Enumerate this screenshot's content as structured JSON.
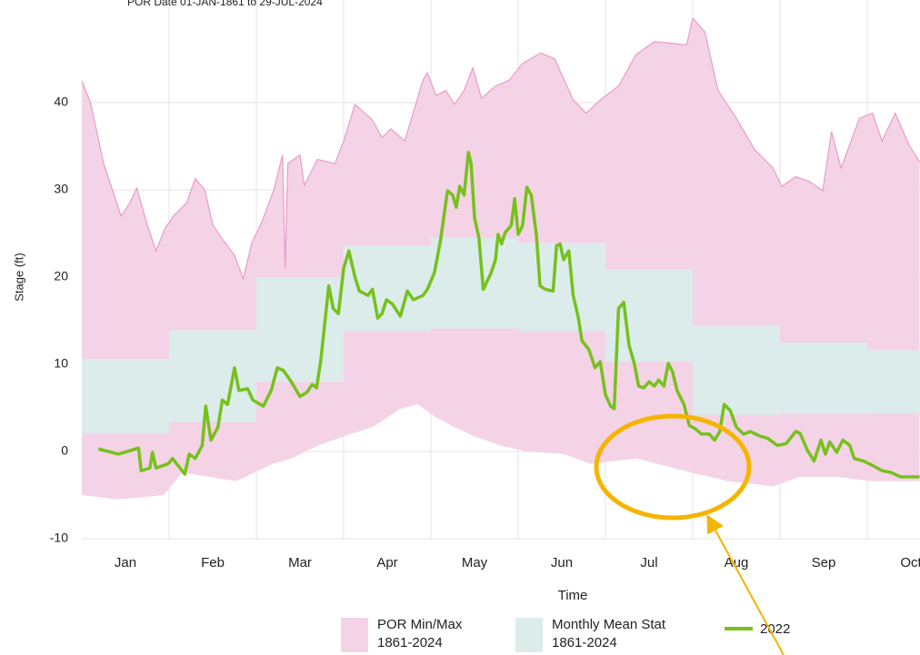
{
  "chart_data": {
    "type": "band-line",
    "subtitle": "POR Date 01-JAN-1861 to 29-JUL-2024",
    "y_label": "Stage (ft)",
    "x_label": "Time",
    "categories": [
      "Jan",
      "Feb",
      "Mar",
      "Apr",
      "May",
      "Jun",
      "Jul",
      "Aug",
      "Sep",
      "Oct"
    ],
    "xlim": [
      0,
      9.6
    ],
    "ylim": [
      -10,
      50
    ],
    "yticks": [
      -10,
      0,
      10,
      20,
      30,
      40
    ],
    "grid": true,
    "por": {
      "name": "POR Min/Max",
      "period": "1861-2024",
      "color": "#f5d3e6",
      "line_color": "#e99cc6",
      "max": {
        "x": [
          0.0,
          0.1,
          0.25,
          0.45,
          0.55,
          0.63,
          0.75,
          0.85,
          0.95,
          1.05,
          1.2,
          1.3,
          1.41,
          1.5,
          1.6,
          1.75,
          1.85,
          1.95,
          2.05,
          2.2,
          2.3,
          2.33,
          2.36,
          2.5,
          2.55,
          2.7,
          2.9,
          3.0,
          3.13,
          3.33,
          3.44,
          3.54,
          3.7,
          3.91,
          3.96,
          4.06,
          4.17,
          4.27,
          4.38,
          4.48,
          4.58,
          4.74,
          4.9,
          5.05,
          5.26,
          5.42,
          5.63,
          5.78,
          5.94,
          6.15,
          6.35,
          6.56,
          6.77,
          6.93,
          7.0,
          7.14,
          7.29,
          7.5,
          7.71,
          7.92,
          8.02,
          8.18,
          8.33,
          8.49,
          8.59,
          8.7,
          8.91,
          9.06,
          9.17,
          9.32,
          9.48,
          9.6
        ],
        "values": [
          42.5,
          40.0,
          33.0,
          27.0,
          28.5,
          30.2,
          26.0,
          23.0,
          25.5,
          27.0,
          28.5,
          31.3,
          30.0,
          26.0,
          24.5,
          22.5,
          19.8,
          24.0,
          26.0,
          30.0,
          34.0,
          21.0,
          33.0,
          34.0,
          30.5,
          33.5,
          33.0,
          35.6,
          39.8,
          38.0,
          36.0,
          37.0,
          35.6,
          42.6,
          43.4,
          40.8,
          41.4,
          39.8,
          41.4,
          44.0,
          40.5,
          41.9,
          42.6,
          44.5,
          45.7,
          45.0,
          40.3,
          38.8,
          40.3,
          41.9,
          45.5,
          47.0,
          46.8,
          46.6,
          49.7,
          48.1,
          41.4,
          38.2,
          34.6,
          32.5,
          30.4,
          31.5,
          31.0,
          29.9,
          36.7,
          32.5,
          38.2,
          38.8,
          35.6,
          38.8,
          35.1,
          33.2
        ]
      },
      "min": {
        "x": [
          0.0,
          0.42,
          0.94,
          1.15,
          1.46,
          1.77,
          1.98,
          2.19,
          2.4,
          2.71,
          3.02,
          3.33,
          3.65,
          3.85,
          4.06,
          4.27,
          4.48,
          4.79,
          5.1,
          5.52,
          5.83,
          6.35,
          6.67,
          6.98,
          7.4,
          7.92,
          8.23,
          8.65,
          9.06,
          9.6
        ],
        "values": [
          -5.0,
          -5.5,
          -5.0,
          -2.4,
          -2.9,
          -3.4,
          -2.4,
          -1.4,
          -0.8,
          0.7,
          1.8,
          2.8,
          4.9,
          5.4,
          3.9,
          2.8,
          1.8,
          0.7,
          0.0,
          -0.3,
          -1.4,
          -0.8,
          -1.6,
          -2.4,
          -3.4,
          -4.0,
          -2.9,
          -2.9,
          -3.4,
          -3.4
        ]
      }
    },
    "mean_stat": {
      "name": "Monthly Mean Stat",
      "period": "1861-2024",
      "color": "#dcecea",
      "low": [
        2.1,
        3.4,
        8.0,
        13.8,
        14.1,
        13.8,
        10.3,
        4.2,
        4.3,
        4.4
      ],
      "high": [
        10.6,
        13.9,
        20.0,
        23.6,
        24.5,
        23.9,
        20.9,
        14.4,
        12.5,
        11.6
      ]
    },
    "series": [
      {
        "name": "2022",
        "color": "#76c11c",
        "x": [
          0.19,
          0.42,
          0.65,
          0.68,
          0.78,
          0.81,
          0.85,
          0.99,
          1.04,
          1.18,
          1.23,
          1.3,
          1.38,
          1.42,
          1.48,
          1.56,
          1.61,
          1.67,
          1.75,
          1.8,
          1.9,
          1.96,
          2.08,
          2.17,
          2.24,
          2.31,
          2.4,
          2.5,
          2.58,
          2.64,
          2.69,
          2.74,
          2.79,
          2.83,
          2.88,
          2.94,
          3.0,
          3.06,
          3.13,
          3.18,
          3.28,
          3.33,
          3.39,
          3.44,
          3.49,
          3.56,
          3.65,
          3.73,
          3.8,
          3.91,
          3.96,
          4.04,
          4.11,
          4.19,
          4.25,
          4.29,
          4.33,
          4.38,
          4.43,
          4.46,
          4.5,
          4.55,
          4.6,
          4.69,
          4.74,
          4.77,
          4.81,
          4.85,
          4.92,
          4.96,
          5.0,
          5.05,
          5.1,
          5.15,
          5.21,
          5.25,
          5.31,
          5.4,
          5.44,
          5.48,
          5.52,
          5.58,
          5.63,
          5.69,
          5.73,
          5.81,
          5.88,
          5.94,
          6.0,
          6.06,
          6.1,
          6.15,
          6.21,
          6.27,
          6.33,
          6.38,
          6.44,
          6.5,
          6.56,
          6.61,
          6.67,
          6.72,
          6.77,
          6.82,
          6.9,
          6.96,
          7.03,
          7.1,
          7.19,
          7.25,
          7.31,
          7.36,
          7.43,
          7.5,
          7.58,
          7.66,
          7.76,
          7.86,
          7.97,
          8.07,
          8.18,
          8.23,
          8.31,
          8.39,
          8.47,
          8.52,
          8.57,
          8.65,
          8.72,
          8.8,
          8.85,
          8.96,
          9.06,
          9.17,
          9.27,
          9.38,
          9.6
        ],
        "values": [
          0.3,
          -0.3,
          0.4,
          -2.2,
          -1.9,
          -0.1,
          -1.9,
          -1.4,
          -0.8,
          -2.6,
          -0.3,
          -0.8,
          0.7,
          5.2,
          1.3,
          2.8,
          5.9,
          5.4,
          9.6,
          7.0,
          7.2,
          5.9,
          5.2,
          7.0,
          9.6,
          9.3,
          8.0,
          6.3,
          6.8,
          7.7,
          7.3,
          10.6,
          15.3,
          19.0,
          16.4,
          15.8,
          21.0,
          23.0,
          20.0,
          18.4,
          17.9,
          18.6,
          15.3,
          15.8,
          17.4,
          16.9,
          15.5,
          18.4,
          17.4,
          17.9,
          18.6,
          20.5,
          24.2,
          29.9,
          29.4,
          28.0,
          30.4,
          29.4,
          34.3,
          33.0,
          26.8,
          24.5,
          18.6,
          20.5,
          22.0,
          24.9,
          23.8,
          25.1,
          25.9,
          29.0,
          24.9,
          25.9,
          30.3,
          29.4,
          24.7,
          19.0,
          18.6,
          18.4,
          23.6,
          23.8,
          22.0,
          23.0,
          17.9,
          15.3,
          12.7,
          11.7,
          9.6,
          10.3,
          6.5,
          5.2,
          4.9,
          16.4,
          17.1,
          12.2,
          10.1,
          7.5,
          7.3,
          8.0,
          7.5,
          8.2,
          7.5,
          10.1,
          9.1,
          7.0,
          5.4,
          3.0,
          2.6,
          2.0,
          2.0,
          1.3,
          2.3,
          5.4,
          4.7,
          2.8,
          2.0,
          2.3,
          1.8,
          1.5,
          0.7,
          0.9,
          2.3,
          2.1,
          0.2,
          -1.1,
          1.3,
          -0.3,
          1.1,
          -0.1,
          1.3,
          0.7,
          -0.8,
          -1.1,
          -1.6,
          -2.2,
          -2.4,
          -2.9,
          -2.9
        ]
      }
    ]
  }
}
